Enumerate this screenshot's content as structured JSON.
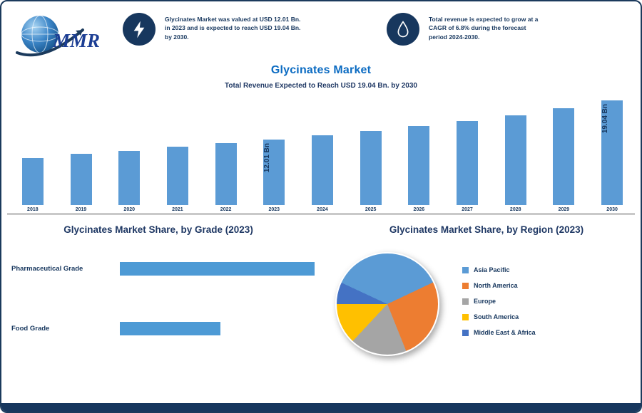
{
  "logo": {
    "text": "MMR"
  },
  "highlights": [
    {
      "icon": "lightning-icon",
      "text": "Glycinates Market was valued at USD 12.01 Bn. in 2023 and is expected to reach USD 19.04 Bn. by 2030."
    },
    {
      "icon": "droplet-icon",
      "text": "Total revenue is expected to grow at a CAGR of 6.8% during the forecast period 2024-2030."
    }
  ],
  "title": "Glycinates Market",
  "subtitle": "Total Revenue Expected to Reach USD 19.04 Bn. by 2030",
  "chart_data": [
    {
      "type": "bar",
      "title": "Glycinates Market",
      "categories": [
        "2018",
        "2019",
        "2020",
        "2021",
        "2022",
        "2023",
        "2024",
        "2025",
        "2026",
        "2027",
        "2028",
        "2029",
        "2030"
      ],
      "values": [
        8.6,
        9.3,
        9.9,
        10.6,
        11.3,
        12.01,
        12.75,
        13.55,
        14.4,
        15.3,
        16.4,
        17.6,
        19.04
      ],
      "unit": "USD Bn",
      "ylim": [
        0,
        20
      ],
      "bar_color": "#5b9bd5",
      "callouts": {
        "2023": "12.01 Bn",
        "2030": "19.04 Bn"
      },
      "grid": false,
      "legend_position": "none"
    },
    {
      "type": "bar",
      "orientation": "horizontal",
      "title": "Glycinates Market Share, by Grade (2023)",
      "categories": [
        "Pharmaceutical Grade",
        "Food Grade"
      ],
      "values": [
        62,
        32
      ],
      "unit": "%",
      "bar_color": "#4d9ad5",
      "grid": false,
      "legend_position": "none"
    },
    {
      "type": "pie",
      "title": "Glycinates Market Share, by Region (2023)",
      "labels": [
        "Asia Pacific",
        "North America",
        "Europe",
        "South America",
        "Middle East & Africa"
      ],
      "values": [
        36,
        26,
        18,
        13,
        7
      ],
      "unit": "%",
      "colors": [
        "#5b9bd5",
        "#ed7d31",
        "#a5a5a5",
        "#ffc000",
        "#4472c4"
      ],
      "start_angle": -65,
      "legend_position": "right"
    }
  ],
  "colors": {
    "accent_navy": "#17375e",
    "bar_blue": "#5b9bd5",
    "title_blue": "#0b6bc2",
    "baseline_gray": "#c9c9c9"
  }
}
